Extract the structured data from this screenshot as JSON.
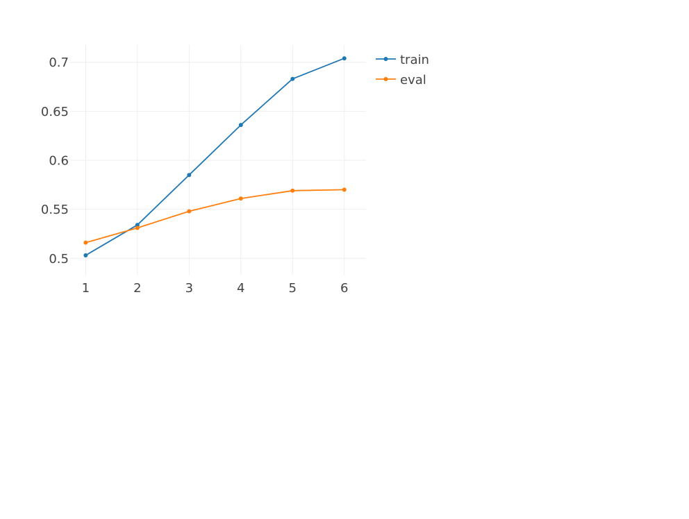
{
  "chart_data": {
    "type": "line",
    "title": "",
    "xlabel": "",
    "ylabel": "",
    "x": [
      1,
      2,
      3,
      4,
      5,
      6
    ],
    "xlim": [
      0.7,
      6.42
    ],
    "ylim": [
      0.4825,
      0.7175
    ],
    "xticks": [
      1,
      2,
      3,
      4,
      5,
      6
    ],
    "yticks": [
      0.5,
      0.55,
      0.6,
      0.65,
      0.7
    ],
    "ytick_labels": [
      "0.5",
      "0.55",
      "0.6",
      "0.65",
      "0.7"
    ],
    "grid": true,
    "legend_position": "right-top",
    "series": [
      {
        "name": "train",
        "color": "#1f77b4",
        "values": [
          0.503,
          0.534,
          0.585,
          0.636,
          0.683,
          0.704
        ]
      },
      {
        "name": "eval",
        "color": "#ff7f0e",
        "values": [
          0.516,
          0.531,
          0.548,
          0.561,
          0.569,
          0.57
        ]
      }
    ]
  }
}
